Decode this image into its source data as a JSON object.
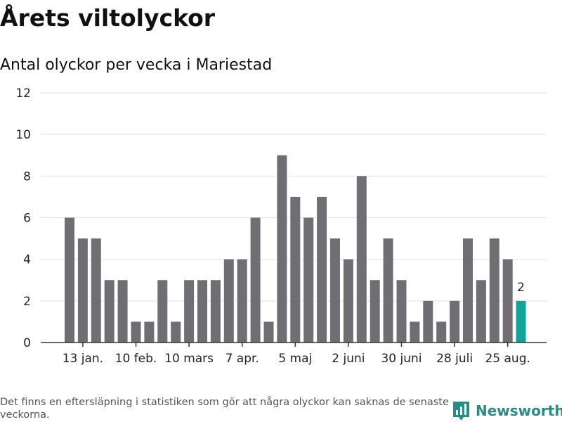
{
  "header": {
    "title": "Årets viltolyckor",
    "subtitle": "Antal olyckor per vecka i Mariestad"
  },
  "footer": {
    "note": "Det finns en eftersläpning i statistiken som gör att några olyckor kan saknas de senaste veckorna.",
    "brand": "Newsworthy"
  },
  "colors": {
    "bar": "#6f6e73",
    "highlight": "#12a39a",
    "grid": "#e2e2e2",
    "axis": "#333333",
    "brand": "#2d8a82"
  },
  "chart_data": {
    "type": "bar",
    "title": "",
    "xlabel": "",
    "ylabel": "",
    "ylim": [
      0,
      12
    ],
    "yticks": [
      0,
      2,
      4,
      6,
      8,
      10,
      12
    ],
    "grid": true,
    "week_start": 1,
    "values": [
      6,
      5,
      5,
      3,
      3,
      1,
      1,
      3,
      1,
      3,
      3,
      3,
      4,
      4,
      6,
      1,
      9,
      7,
      6,
      7,
      5,
      4,
      8,
      3,
      5,
      3,
      1,
      2,
      1,
      2,
      5,
      3,
      5,
      4,
      2
    ],
    "highlight_index": 34,
    "highlight_label": "2",
    "xtick_labels": [
      {
        "label": "13 jan.",
        "index": 1
      },
      {
        "label": "10 feb.",
        "index": 5
      },
      {
        "label": "10 mars",
        "index": 9
      },
      {
        "label": "7 apr.",
        "index": 13
      },
      {
        "label": "5 maj",
        "index": 17
      },
      {
        "label": "2 juni",
        "index": 21
      },
      {
        "label": "30 juni",
        "index": 25
      },
      {
        "label": "28 juli",
        "index": 29
      },
      {
        "label": "25 aug.",
        "index": 33
      }
    ]
  }
}
